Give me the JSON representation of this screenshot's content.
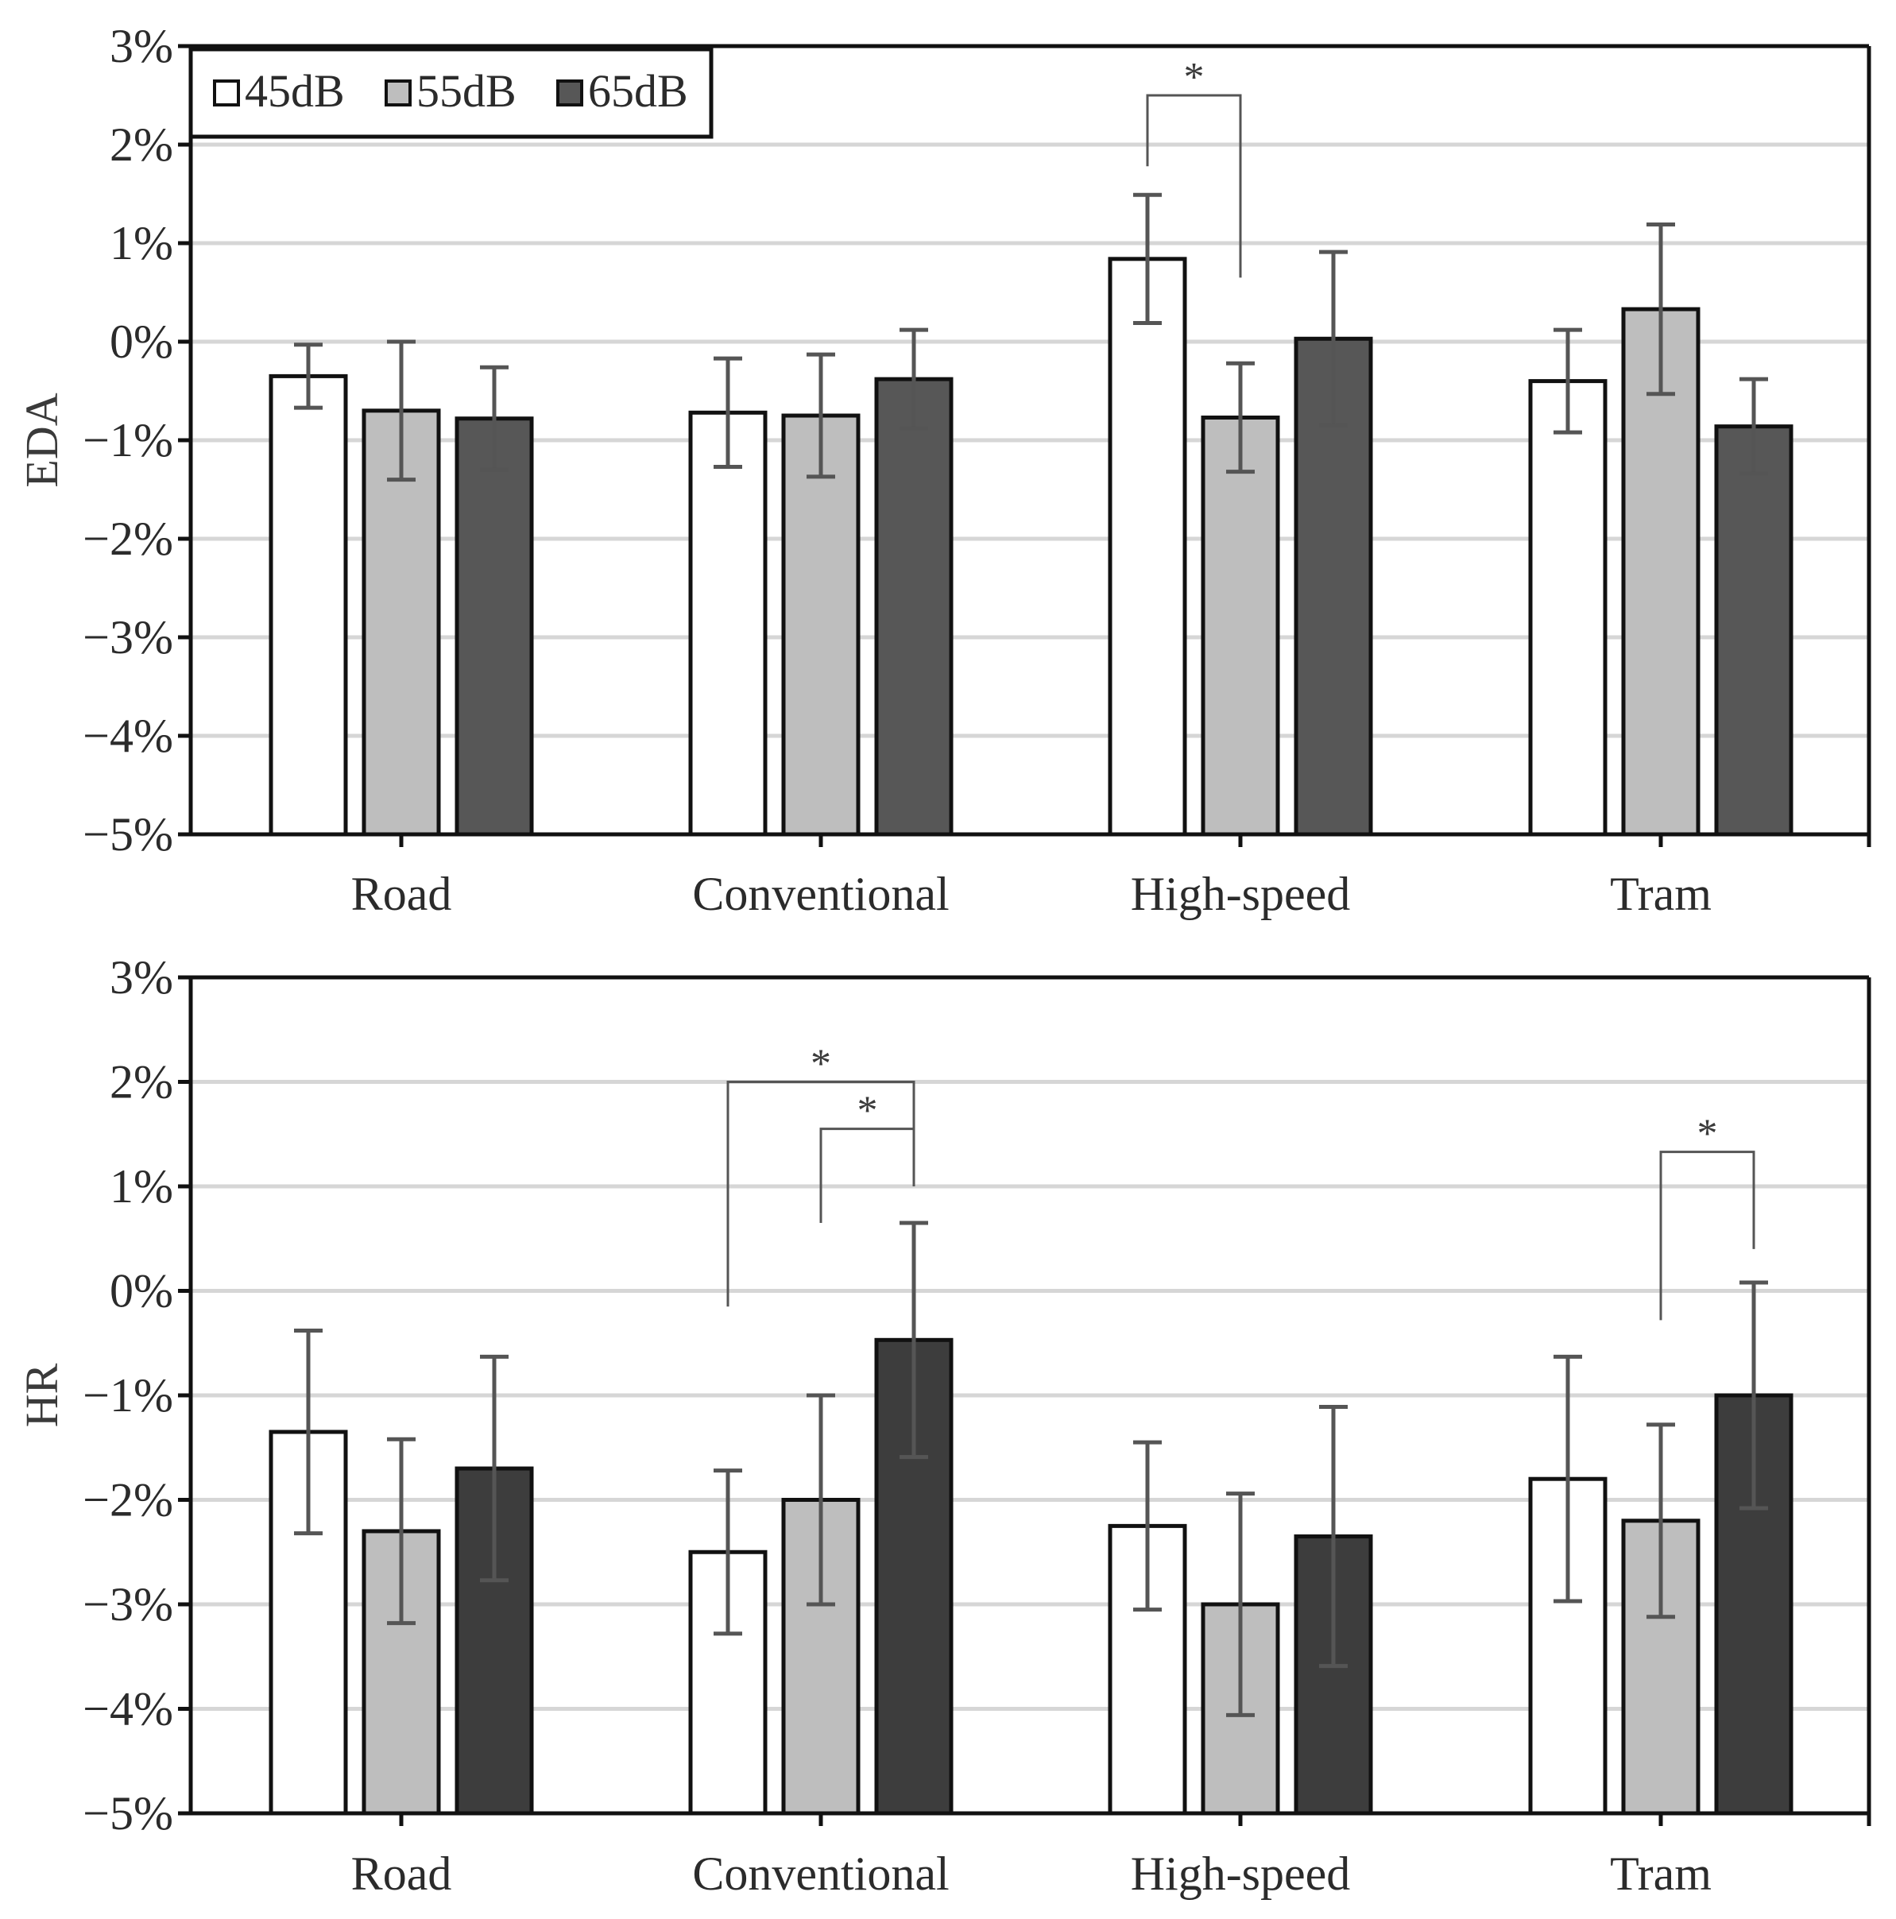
{
  "chart_data": [
    {
      "type": "bar",
      "ylabel": "EDA",
      "xlabel": "",
      "ylim": [
        -5,
        3
      ],
      "yticks": [
        3,
        2,
        1,
        0,
        -1,
        -2,
        -3,
        -4,
        -5
      ],
      "ytick_labels": [
        "3%",
        "2%",
        "1%",
        "0%",
        "−1%",
        "−2%",
        "−3%",
        "−4%",
        "−5%"
      ],
      "categories": [
        "Road",
        "Conventional",
        "High-speed",
        "Tram"
      ],
      "series": [
        {
          "name": "45dB",
          "color": "#ffffff",
          "values": [
            -0.35,
            -0.72,
            0.84,
            -0.4
          ],
          "errors": [
            0.32,
            0.55,
            0.65,
            0.52
          ]
        },
        {
          "name": "55dB",
          "color": "#bebebe",
          "values": [
            -0.7,
            -0.75,
            -0.77,
            0.33
          ],
          "errors": [
            0.7,
            0.62,
            0.55,
            0.86
          ]
        },
        {
          "name": "65dB",
          "color": "#575757",
          "values": [
            -0.78,
            -0.38,
            0.03,
            -0.86
          ],
          "errors": [
            0.52,
            0.5,
            0.88,
            0.48
          ]
        }
      ],
      "significance": [
        {
          "category": 2,
          "from_series": 0,
          "to_series": 1,
          "label": "*"
        }
      ],
      "grid": true,
      "legend": {
        "position": "top-left",
        "items": [
          "45dB",
          "55dB",
          "65dB"
        ]
      }
    },
    {
      "type": "bar",
      "ylabel": "HR",
      "xlabel": "",
      "ylim": [
        -5,
        3
      ],
      "yticks": [
        3,
        2,
        1,
        0,
        -1,
        -2,
        -3,
        -4,
        -5
      ],
      "ytick_labels": [
        "3%",
        "2%",
        "1%",
        "0%",
        "−1%",
        "−2%",
        "−3%",
        "−4%",
        "−5%"
      ],
      "categories": [
        "Road",
        "Conventional",
        "High-speed",
        "Tram"
      ],
      "series": [
        {
          "name": "45dB",
          "color": "#ffffff",
          "values": [
            -1.35,
            -2.5,
            -2.25,
            -1.8
          ],
          "errors": [
            0.97,
            0.78,
            0.8,
            1.17
          ]
        },
        {
          "name": "55dB",
          "color": "#bebebe",
          "values": [
            -2.3,
            -2.0,
            -3.0,
            -2.2
          ],
          "errors": [
            0.88,
            1.0,
            1.06,
            0.92
          ]
        },
        {
          "name": "65dB",
          "color": "#3d3d3d",
          "values": [
            -1.7,
            -0.47,
            -2.35,
            -1.0
          ],
          "errors": [
            1.07,
            1.12,
            1.24,
            1.08
          ]
        }
      ],
      "significance": [
        {
          "category": 1,
          "from_series": 0,
          "to_series": 2,
          "label": "*"
        },
        {
          "category": 1,
          "from_series": 1,
          "to_series": 2,
          "label": "*"
        },
        {
          "category": 3,
          "from_series": 1,
          "to_series": 2,
          "label": "*"
        }
      ],
      "grid": true
    }
  ]
}
